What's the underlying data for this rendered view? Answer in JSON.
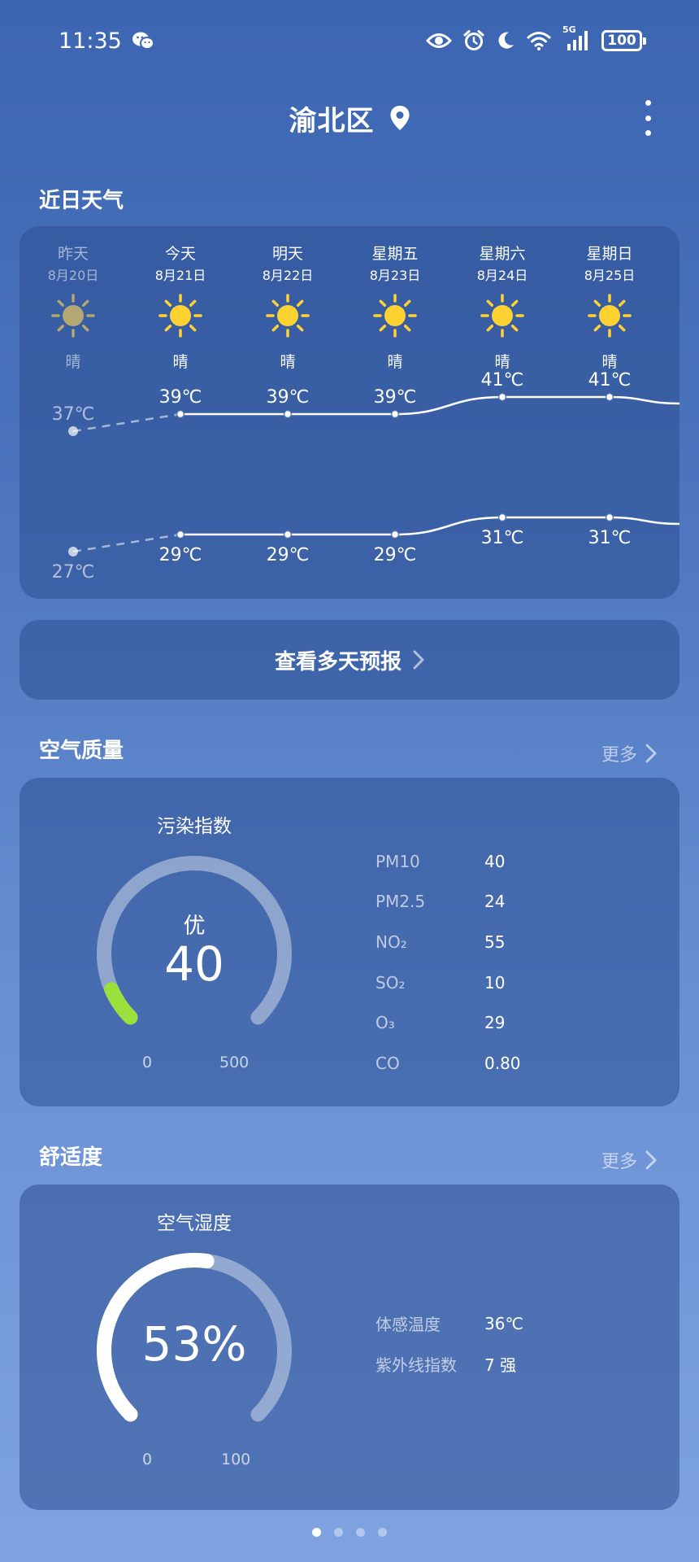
{
  "status_bar": {
    "time": "11:35",
    "network": "5G",
    "battery": "100"
  },
  "header": {
    "title": "渝北区"
  },
  "forecast": {
    "section_title": "近日天气",
    "days": [
      {
        "name": "昨天",
        "date": "8月20日",
        "condition": "晴",
        "high": "37℃",
        "low": "27℃",
        "high_value": 37,
        "low_value": 27,
        "past": true
      },
      {
        "name": "今天",
        "date": "8月21日",
        "condition": "晴",
        "high": "39℃",
        "low": "29℃",
        "high_value": 39,
        "low_value": 29,
        "past": false
      },
      {
        "name": "明天",
        "date": "8月22日",
        "condition": "晴",
        "high": "39℃",
        "low": "29℃",
        "high_value": 39,
        "low_value": 29,
        "past": false
      },
      {
        "name": "星期五",
        "date": "8月23日",
        "condition": "晴",
        "high": "39℃",
        "low": "29℃",
        "high_value": 39,
        "low_value": 29,
        "past": false
      },
      {
        "name": "星期六",
        "date": "8月24日",
        "condition": "晴",
        "high": "41℃",
        "low": "31℃",
        "high_value": 41,
        "low_value": 31,
        "past": false
      },
      {
        "name": "星期日",
        "date": "8月25日",
        "condition": "晴",
        "high": "41℃",
        "low": "31℃",
        "high_value": 41,
        "low_value": 31,
        "past": false
      }
    ],
    "more_days_label": "查看多天预报"
  },
  "air_quality": {
    "section_title": "空气质量",
    "more_label": "更多",
    "gauge_title": "污染指数",
    "level": "优",
    "value": "40",
    "value_number": 40,
    "min": "0",
    "max": "500",
    "max_number": 500,
    "fill_color": "#9be03c",
    "metrics": [
      {
        "name": "PM10",
        "value": "40"
      },
      {
        "name": "PM2.5",
        "value": "24"
      },
      {
        "name": "NO₂",
        "value": "55"
      },
      {
        "name": "SO₂",
        "value": "10"
      },
      {
        "name": "O₃",
        "value": "29"
      },
      {
        "name": "CO",
        "value": "0.80"
      }
    ]
  },
  "comfort": {
    "section_title": "舒适度",
    "more_label": "更多",
    "gauge_title": "空气湿度",
    "value": "53%",
    "value_number": 53,
    "min": "0",
    "max": "100",
    "max_number": 100,
    "fill_color": "#ffffff",
    "metrics": [
      {
        "name": "体感温度",
        "value": "36℃"
      },
      {
        "name": "紫外线指数",
        "value": "7 强"
      }
    ]
  },
  "pager": {
    "count": 4,
    "active": 0
  }
}
